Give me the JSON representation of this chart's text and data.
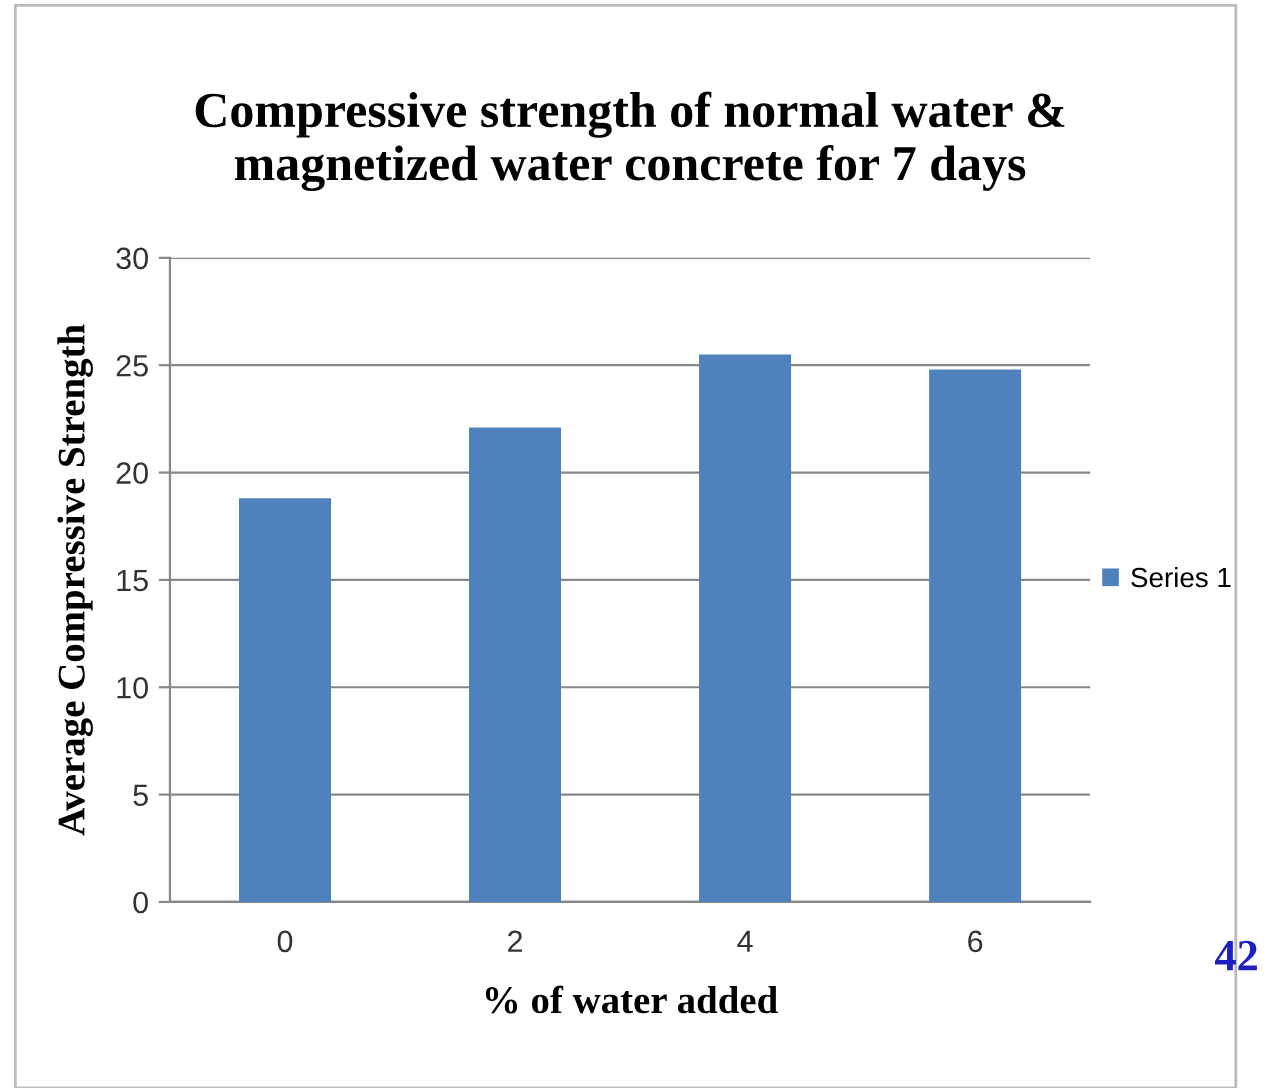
{
  "chart_data": {
    "type": "bar",
    "title": "Compressive strength of normal water &\nmagnetized water concrete for 7 days",
    "xlabel": "% of water added",
    "ylabel": "Average Compressive Strength",
    "categories": [
      "0",
      "2",
      "4",
      "6"
    ],
    "series": [
      {
        "name": "Series 1",
        "color": "#4f81bd",
        "values": [
          18.8,
          22.1,
          25.5,
          24.8
        ]
      }
    ],
    "ylim": [
      0,
      30
    ],
    "yticks": [
      0,
      5,
      10,
      15,
      20,
      25,
      30
    ],
    "grid": "y",
    "legend": "right",
    "annotations": [
      "42"
    ]
  }
}
